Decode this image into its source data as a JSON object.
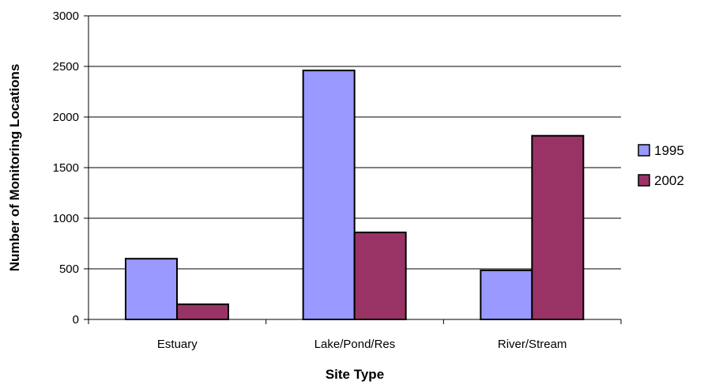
{
  "chart_data": {
    "type": "bar",
    "xlabel": "Site Type",
    "ylabel": "Number of Monitoring Locations",
    "categories": [
      "Estuary",
      "Lake/Pond/Res",
      "River/Stream"
    ],
    "series": [
      {
        "name": "1995",
        "values": [
          600,
          2460,
          485
        ],
        "color": "#9999FF"
      },
      {
        "name": "2002",
        "values": [
          150,
          860,
          1815
        ],
        "color": "#993366"
      }
    ],
    "ylim": [
      0,
      3000
    ],
    "yticks": [
      0,
      500,
      1000,
      1500,
      2000,
      2500,
      3000
    ],
    "grid": true,
    "legend_position": "right"
  }
}
